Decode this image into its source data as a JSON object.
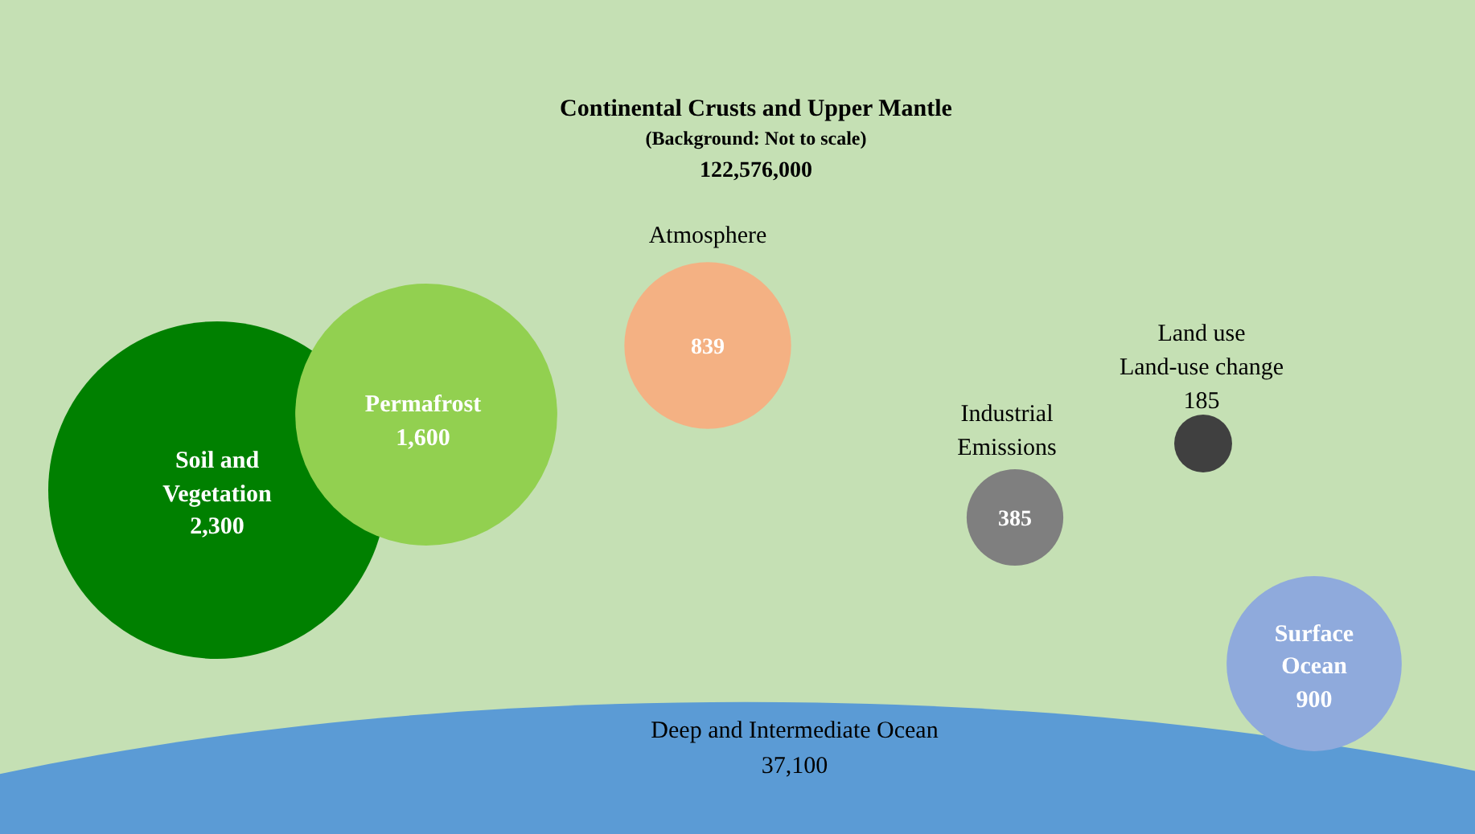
{
  "chart_data": {
    "type": "other",
    "subtitle": "(Background: Not to scale)",
    "categories": [
      "Continental Crusts and Upper Mantle",
      "Atmosphere",
      "Soil and\nVegetation",
      "Permafrost",
      "Industrial\nEmissions",
      "Land use\nLand-use change",
      "Surface\nOcean",
      "Deep and Intermediate Ocean"
    ],
    "values": [
      122576000,
      839,
      2300,
      1600,
      385,
      185,
      900,
      37100
    ],
    "colors": [
      "#c5e0b4",
      "#f4b183",
      "#008000",
      "#92d050",
      "#7f7f7f",
      "#404040",
      "#8faadc",
      "#5b9bd5"
    ],
    "value_labels": [
      "122,576,000",
      "839",
      "2,300",
      "1,600",
      "385",
      "185",
      "900",
      "37,100"
    ]
  }
}
